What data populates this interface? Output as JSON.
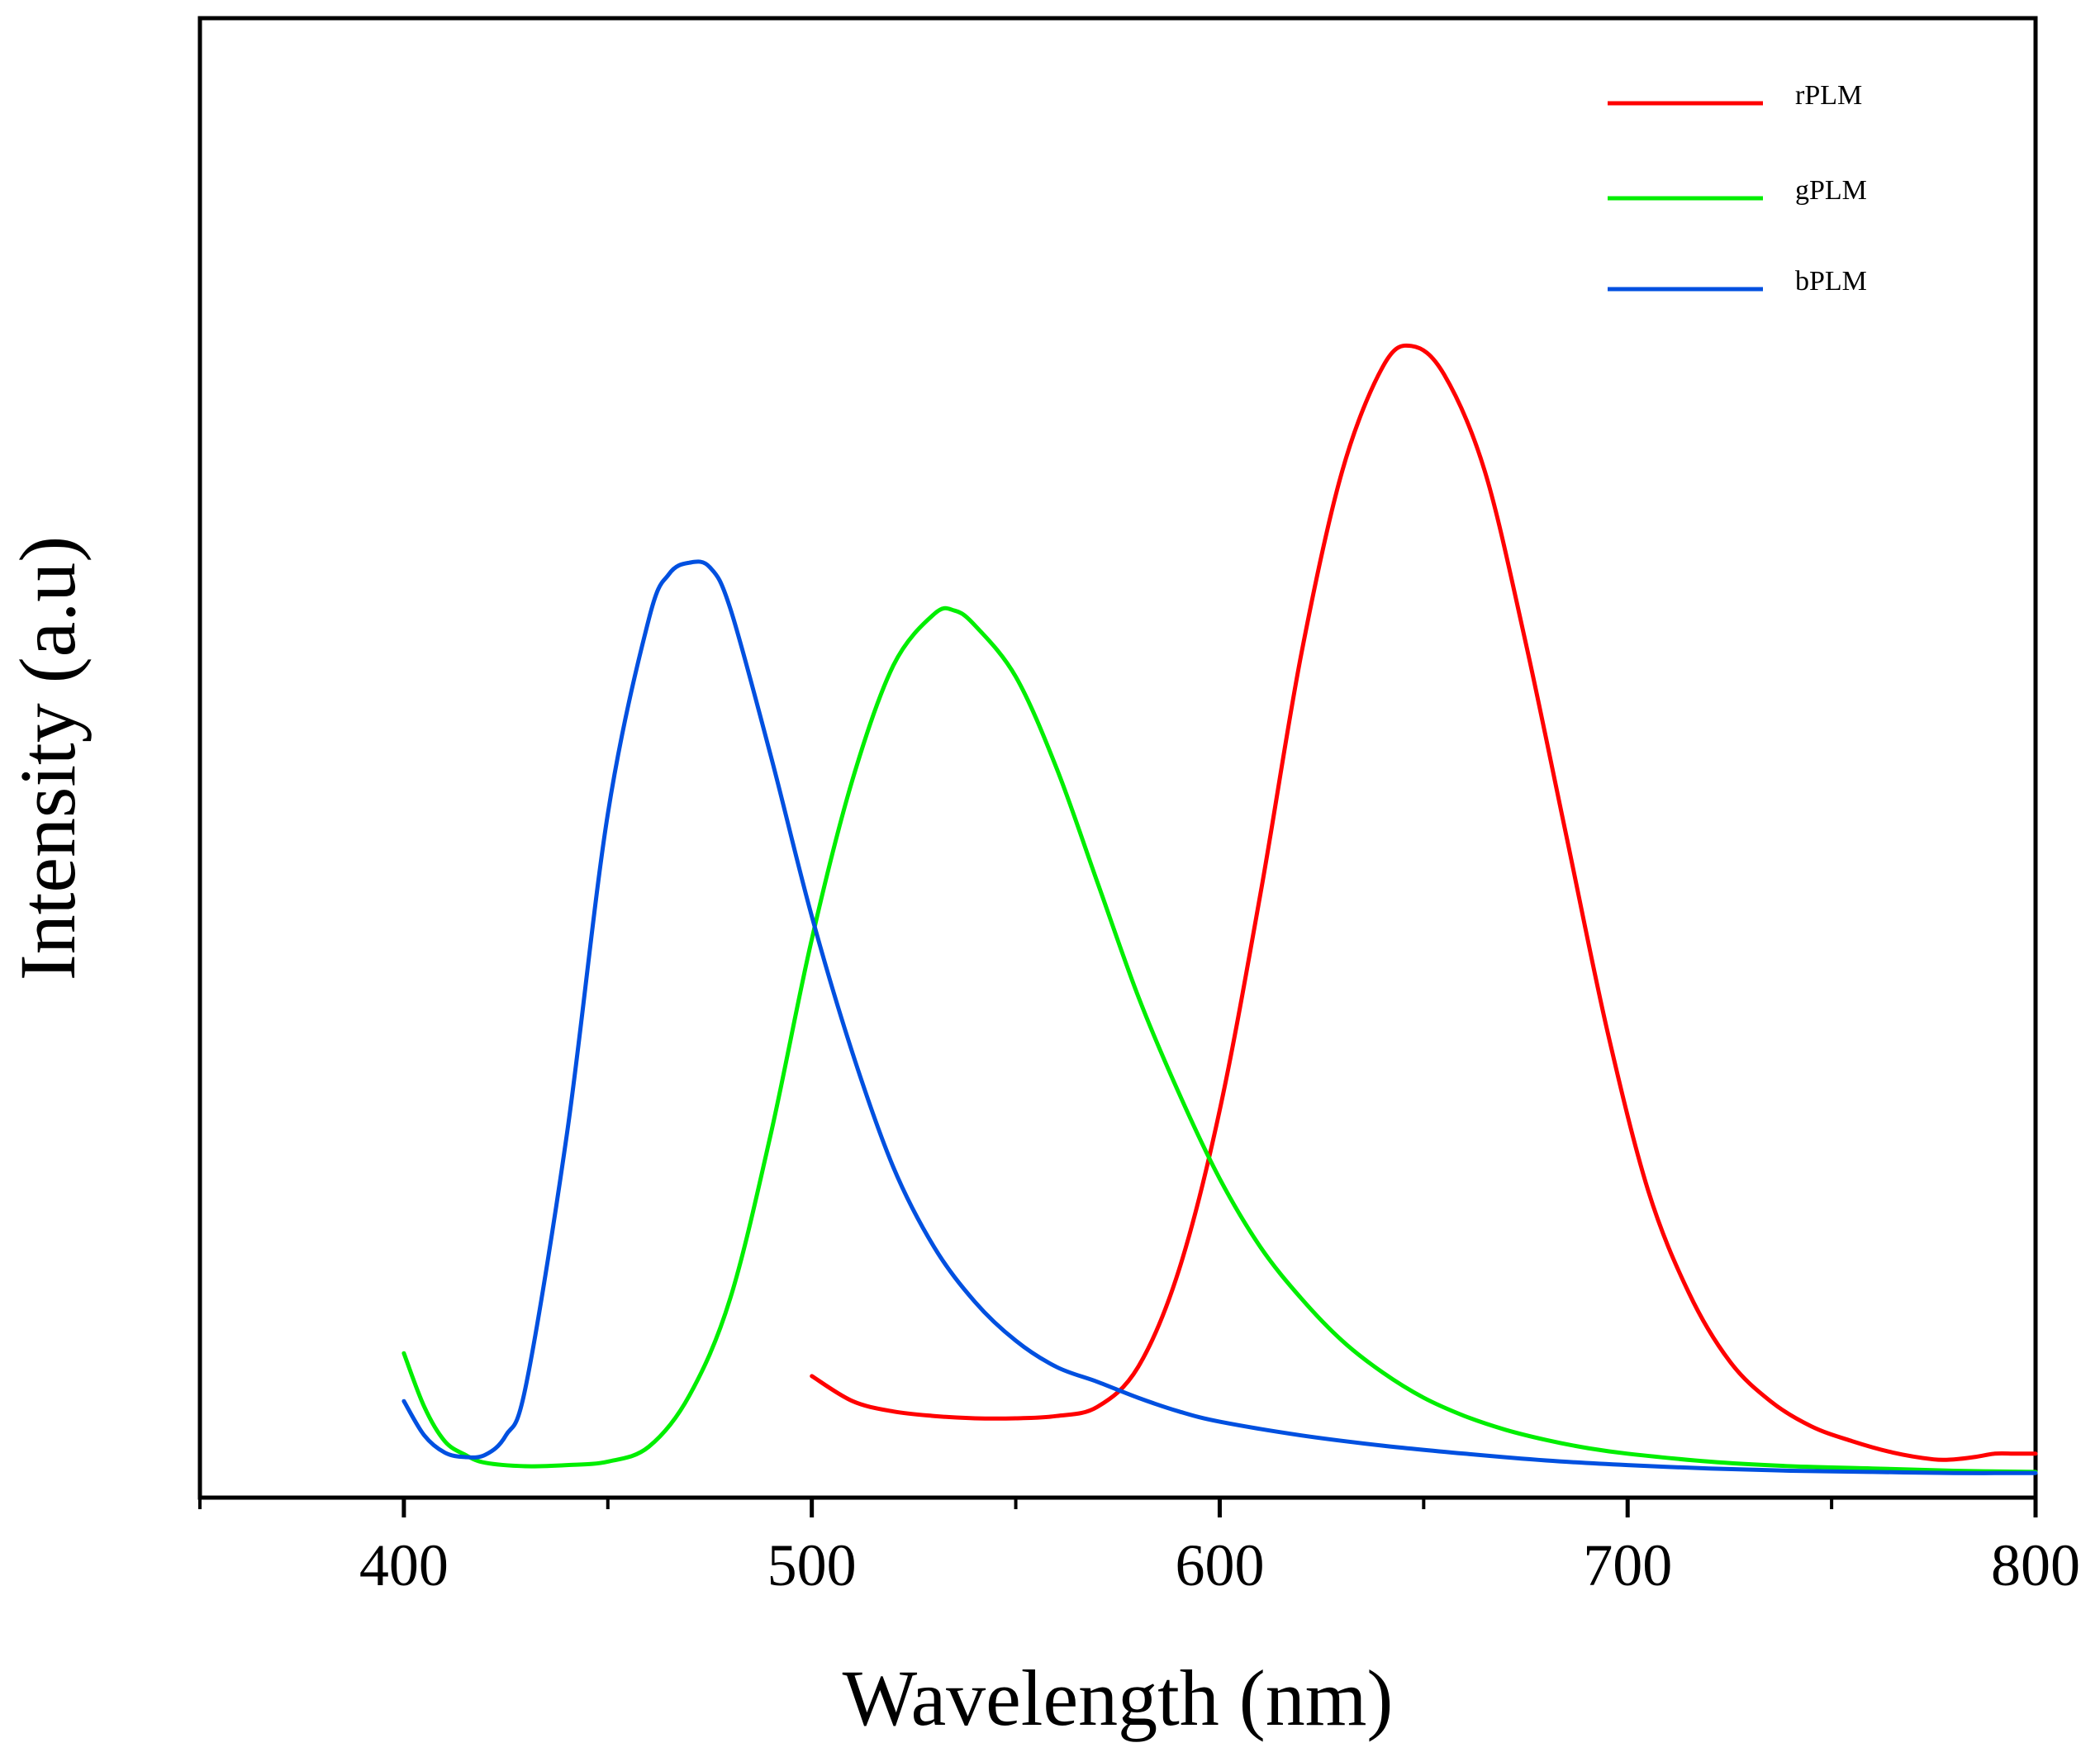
{
  "chart_data": {
    "type": "line",
    "title": "",
    "xlabel": "Wavelength (nm)",
    "ylabel": "Intensity (a.u)",
    "xlim": [
      350,
      800
    ],
    "ylim": [
      0,
      1
    ],
    "xticks": [
      400,
      500,
      600,
      700,
      800
    ],
    "xtick_labels": [
      "400",
      "500",
      "600",
      "700",
      "800"
    ],
    "x_minor_ticks": [
      350,
      450,
      550,
      650,
      750
    ],
    "grid": false,
    "legend_position": "top-right",
    "series": [
      {
        "name": "rPLM",
        "color": "#ff0000",
        "x": [
          500,
          510,
          520,
          530,
          540,
          550,
          560,
          570,
          580,
          590,
          600,
          610,
          620,
          630,
          640,
          647,
          655,
          665,
          675,
          685,
          695,
          705,
          715,
          725,
          735,
          745,
          755,
          765,
          775,
          780,
          785,
          790,
          795,
          800
        ],
        "y": [
          0.087,
          0.065,
          0.056,
          0.052,
          0.05,
          0.05,
          0.052,
          0.06,
          0.095,
          0.18,
          0.32,
          0.51,
          0.72,
          0.88,
          0.972,
          0.99,
          0.965,
          0.88,
          0.73,
          0.56,
          0.39,
          0.25,
          0.16,
          0.1,
          0.065,
          0.043,
          0.03,
          0.02,
          0.014,
          0.014,
          0.016,
          0.019,
          0.019,
          0.019
        ]
      },
      {
        "name": "gPLM",
        "color": "#00ee00",
        "x": [
          400,
          405,
          410,
          415,
          420,
          430,
          440,
          450,
          460,
          470,
          480,
          490,
          500,
          510,
          520,
          530,
          535,
          540,
          550,
          560,
          570,
          580,
          590,
          600,
          610,
          620,
          630,
          640,
          650,
          660,
          670,
          680,
          690,
          700,
          720,
          740,
          760,
          780,
          800
        ],
        "y": [
          0.107,
          0.06,
          0.03,
          0.018,
          0.011,
          0.008,
          0.009,
          0.012,
          0.025,
          0.07,
          0.155,
          0.3,
          0.47,
          0.61,
          0.71,
          0.755,
          0.758,
          0.745,
          0.7,
          0.62,
          0.52,
          0.42,
          0.335,
          0.26,
          0.2,
          0.155,
          0.118,
          0.09,
          0.068,
          0.052,
          0.04,
          0.031,
          0.024,
          0.019,
          0.012,
          0.008,
          0.006,
          0.004,
          0.003
        ]
      },
      {
        "name": "bPLM",
        "color": "#0050e0",
        "x": [
          400,
          405,
          410,
          415,
          420,
          425,
          430,
          440,
          450,
          460,
          465,
          470,
          475,
          480,
          490,
          500,
          510,
          520,
          530,
          540,
          550,
          560,
          570,
          580,
          590,
          600,
          620,
          640,
          660,
          680,
          700,
          720,
          740,
          760,
          780,
          800
        ],
        "y": [
          0.065,
          0.035,
          0.02,
          0.016,
          0.018,
          0.035,
          0.08,
          0.3,
          0.58,
          0.75,
          0.79,
          0.8,
          0.796,
          0.76,
          0.63,
          0.49,
          0.37,
          0.27,
          0.2,
          0.152,
          0.118,
          0.095,
          0.082,
          0.068,
          0.056,
          0.047,
          0.035,
          0.026,
          0.019,
          0.013,
          0.009,
          0.006,
          0.004,
          0.003,
          0.002,
          0.002
        ]
      }
    ]
  }
}
